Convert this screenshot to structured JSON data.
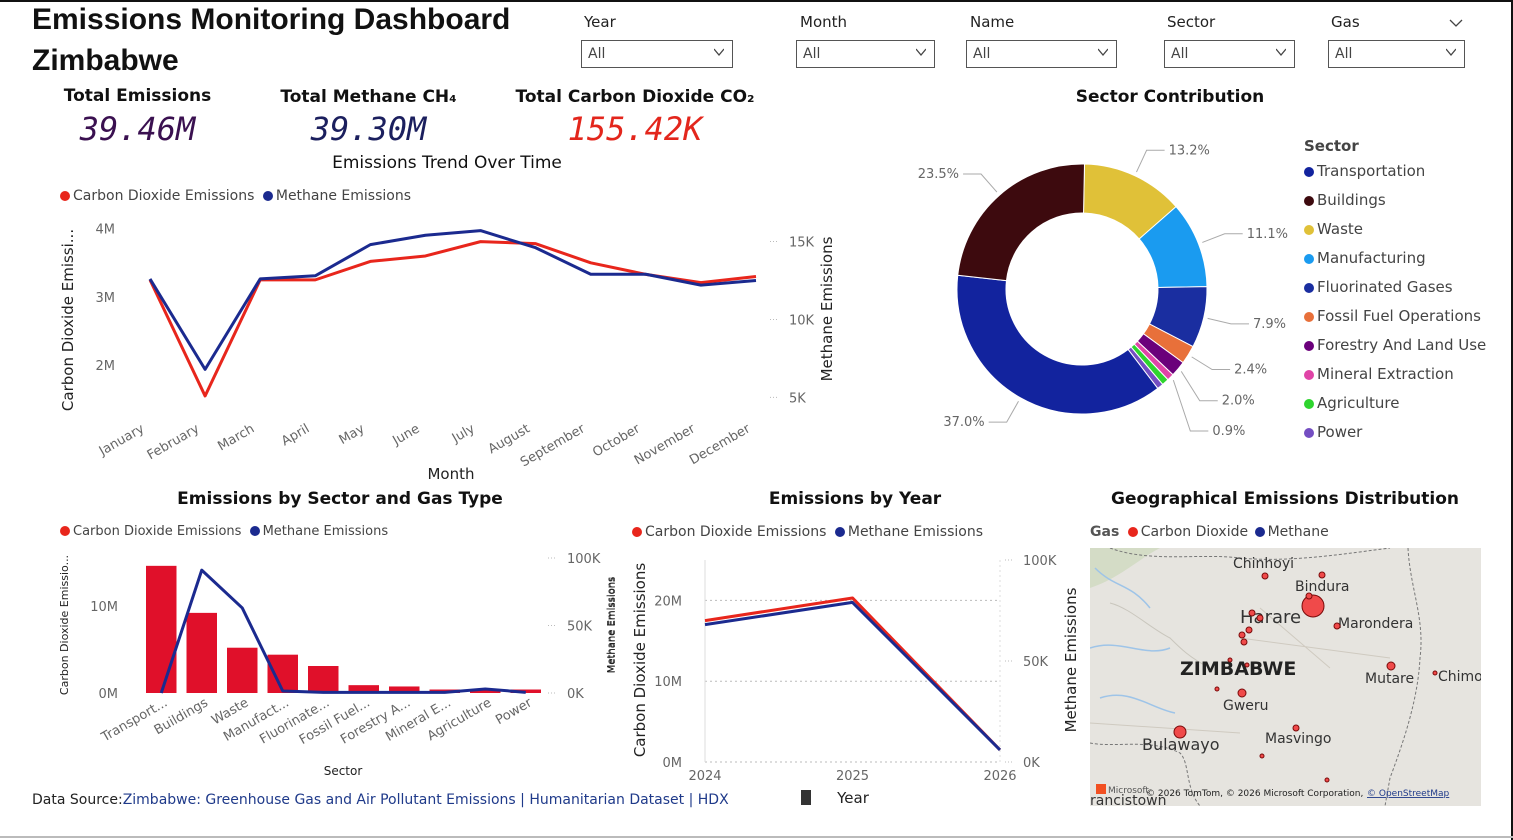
{
  "header": {
    "title_line1": "Emissions Monitoring Dashboard",
    "title_line2": "Zimbabwe"
  },
  "filters": [
    {
      "label": "Year",
      "value": "All"
    },
    {
      "label": "Month",
      "value": "All"
    },
    {
      "label": "Name",
      "value": "All"
    },
    {
      "label": "Sector",
      "value": "All"
    },
    {
      "label": "Gas",
      "value": "All"
    }
  ],
  "kpis": [
    {
      "label": "Total Emissions",
      "value": "39.46M",
      "color": "#3a1050"
    },
    {
      "label": "Total Methane CH₄",
      "value": "39.30M",
      "color": "#1b1f5e"
    },
    {
      "label": "Total Carbon Dioxide CO₂",
      "value": "155.42K",
      "color": "#e3261c"
    }
  ],
  "colors": {
    "co2": "#e8261c",
    "methane": "#1b2a8f",
    "bar": "#e0102a"
  },
  "trend": {
    "title": "Emissions Trend Over Time",
    "legend": [
      "Carbon Dioxide Emissions",
      "Methane Emissions"
    ],
    "xlabel": "Month",
    "ylabel_left": "Carbon Dioxide Emissi...",
    "ylabel_right": "Methane Emissions",
    "left_ticks": [
      "4M",
      "3M",
      "2M"
    ],
    "right_ticks": [
      "15K",
      "10K",
      "5K"
    ]
  },
  "sector_bar": {
    "title": "Emissions by Sector and Gas Type",
    "legend": [
      "Carbon Dioxide Emissions",
      "Methane Emissions"
    ],
    "xlabel": "Sector",
    "ylabel_left": "Carbon Dioxide Emissio...",
    "ylabel_right": "Methane Emissions",
    "left_ticks": [
      "10M",
      "0M"
    ],
    "right_ticks": [
      "100K",
      "50K",
      "0K"
    ]
  },
  "year_chart": {
    "title": "Emissions by Year",
    "legend": [
      "Carbon Dioxide Emissions",
      "Methane Emissions"
    ],
    "xlabel": "Year",
    "ylabel_left": "Carbon Dioxide Emissions",
    "ylabel_right": "Methane Emissions",
    "left_ticks": [
      "20M",
      "10M",
      "0M"
    ],
    "right_ticks": [
      "100K",
      "50K",
      "0K"
    ]
  },
  "donut": {
    "title": "Sector Contribution",
    "legend_title": "Sector"
  },
  "map": {
    "title": "Geographical Emissions Distribution",
    "legend_title": "Gas",
    "legend": [
      "Carbon Dioxide",
      "Methane"
    ],
    "country": "ZIMBABWE",
    "cities": [
      "Chinhoyi",
      "Bindura",
      "Harare",
      "Marondera",
      "Mutare",
      "Chimo",
      "Gweru",
      "Bulawayo",
      "Masvingo",
      "rancistown"
    ],
    "attribution": "© 2026 TomTom, © 2026 Microsoft Corporation,",
    "attribution_link": "© OpenStreetMap",
    "brand": "Microsoft"
  },
  "footer": {
    "source_label": "Data Source:",
    "source_link": "Zimbabwe: Greenhouse Gas and Air Pollutant Emissions | Humanitarian Dataset | HDX"
  },
  "chart_data": [
    {
      "type": "line",
      "title": "Emissions Trend Over Time",
      "xlabel": "Month",
      "ylabel": "Carbon Dioxide Emissi...",
      "y2label": "Methane Emissions",
      "categories": [
        "January",
        "February",
        "March",
        "April",
        "May",
        "June",
        "July",
        "August",
        "September",
        "October",
        "November",
        "December"
      ],
      "series": [
        {
          "name": "Carbon Dioxide Emissions",
          "axis": "left",
          "values": [
            3.25,
            1.55,
            3.25,
            3.25,
            3.52,
            3.6,
            3.81,
            3.78,
            3.5,
            3.33,
            3.21,
            3.3
          ]
        },
        {
          "name": "Methane Emissions",
          "axis": "right",
          "values": [
            12.6,
            6.8,
            12.6,
            12.8,
            14.8,
            15.4,
            15.7,
            14.6,
            12.9,
            12.9,
            12.2,
            12.5
          ]
        }
      ],
      "ylim": [
        1.3,
        4.2
      ],
      "y2lim": [
        4.0,
        16.7
      ],
      "y_unit": "M",
      "y2_unit": "K",
      "legend": "top-left"
    },
    {
      "type": "bar",
      "title": "Emissions by Sector and Gas Type",
      "xlabel": "Sector",
      "ylabel": "Carbon Dioxide Emissio...",
      "y2label": "Methane Emissions",
      "categories": [
        "Transport...",
        "Buildings",
        "Waste",
        "Manufact...",
        "Fluorinate...",
        "Fossil Fuel...",
        "Forestry A...",
        "Mineral E...",
        "Agriculture",
        "Power"
      ],
      "series": [
        {
          "name": "Carbon Dioxide Emissions",
          "type": "bar",
          "axis": "left",
          "values": [
            14.6,
            9.2,
            5.2,
            4.4,
            3.1,
            0.9,
            0.75,
            0.4,
            0.3,
            0.4
          ]
        },
        {
          "name": "Methane Emissions",
          "type": "line",
          "axis": "right",
          "values": [
            0,
            91,
            63,
            1.5,
            0.5,
            0.5,
            0.5,
            0.5,
            3,
            0.5
          ]
        }
      ],
      "ylim": [
        0,
        15.5
      ],
      "y2lim": [
        0,
        100
      ],
      "y_unit": "M",
      "y2_unit": "K",
      "legend": "top-left"
    },
    {
      "type": "line",
      "title": "Emissions by Year",
      "xlabel": "Year",
      "ylabel": "Carbon Dioxide Emissions",
      "y2label": "Methane Emissions",
      "categories": [
        "2024",
        "2025",
        "2026"
      ],
      "series": [
        {
          "name": "Carbon Dioxide Emissions",
          "axis": "left",
          "values": [
            17.5,
            20.3,
            1.5
          ]
        },
        {
          "name": "Methane Emissions",
          "axis": "right",
          "values": [
            68,
            79,
            6
          ]
        }
      ],
      "ylim": [
        0,
        25
      ],
      "y2lim": [
        0,
        100
      ],
      "y_unit": "M",
      "y2_unit": "K",
      "legend": "top-left"
    },
    {
      "type": "pie",
      "title": "Sector Contribution",
      "donut": true,
      "slices": [
        {
          "label": "Transportation",
          "value": 37.0,
          "color": "#12239e",
          "label_text": "37.0%"
        },
        {
          "label": "Buildings",
          "value": 23.5,
          "color": "#3d0a0e",
          "label_text": "23.5%"
        },
        {
          "label": "Waste",
          "value": 13.2,
          "color": "#e0c138",
          "label_text": "13.2%"
        },
        {
          "label": "Manufacturing",
          "value": 11.1,
          "color": "#1a9bf0",
          "label_text": "11.1%"
        },
        {
          "label": "Fluorinated Gases",
          "value": 7.9,
          "color": "#1a2ea0",
          "label_text": "7.9%"
        },
        {
          "label": "Fossil Fuel Operations",
          "value": 2.4,
          "color": "#e8703a",
          "label_text": "2.4%"
        },
        {
          "label": "Forestry And Land Use",
          "value": 2.0,
          "color": "#6b007b",
          "label_text": "2.0%"
        },
        {
          "label": "Mineral Extraction",
          "value": 0.9,
          "color": "#e044a7",
          "label_text": "0.9%"
        },
        {
          "label": "Agriculture",
          "value": 0.9,
          "color": "#2ed42e",
          "label_text": ""
        },
        {
          "label": "Power",
          "value": 0.8,
          "color": "#744ec2",
          "label_text": ""
        }
      ],
      "legend": "right"
    }
  ]
}
